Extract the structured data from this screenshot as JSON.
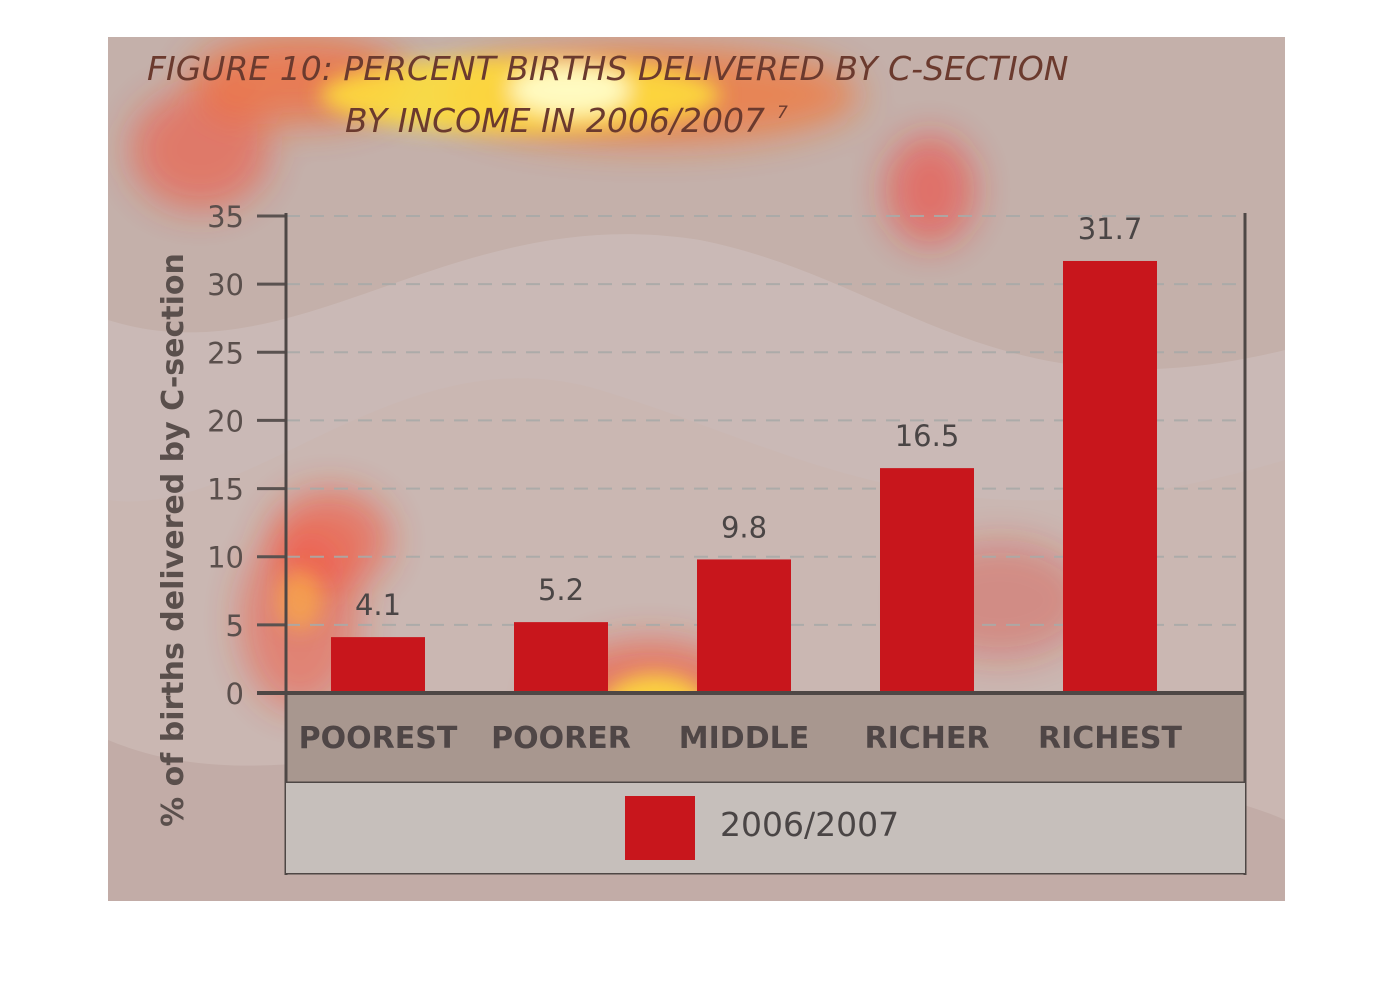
{
  "chart_data": {
    "type": "bar",
    "title_line1": "FIGURE 10: PERCENT BIRTHS DELIVERED BY C-SECTION",
    "title_line2": "BY INCOME IN 2006/2007",
    "title_footnote": "7",
    "ylabel": "% of births delivered by C-section",
    "xlabel": "",
    "categories": [
      "POOREST",
      "POORER",
      "MIDDLE",
      "RICHER",
      "RICHEST"
    ],
    "series": [
      {
        "name": "2006/2007",
        "values": [
          4.1,
          5.2,
          9.8,
          16.5,
          31.7
        ],
        "data_labels": [
          "4.1",
          "5.2",
          "9.8",
          "16.5",
          "31.7"
        ]
      }
    ],
    "ylim": [
      0,
      35
    ],
    "yticks": [
      0,
      5,
      10,
      15,
      20,
      25,
      30,
      35
    ],
    "grid": true,
    "legend_position": "bottom",
    "colors": {
      "bar": "#c8161c",
      "background": "#c4b0aa",
      "category_band": "#a8978f",
      "legend_band": "#c6bfbb",
      "title": "#6b3a2e"
    }
  }
}
